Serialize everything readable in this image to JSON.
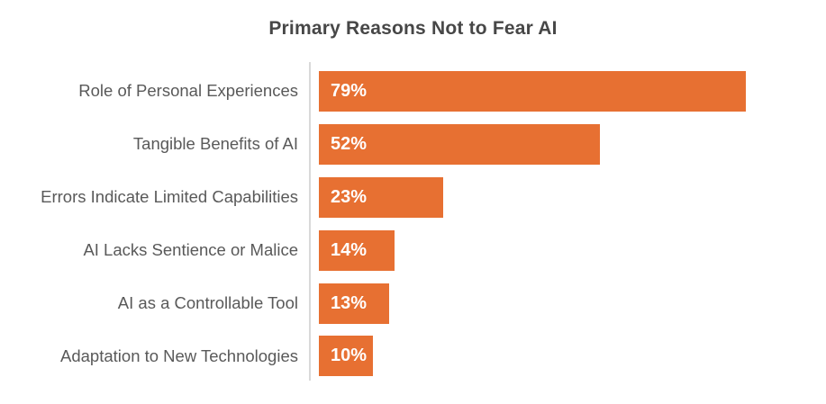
{
  "title": "Primary Reasons Not to Fear AI",
  "colors": {
    "bar": "#E77032",
    "label_text": "#595959",
    "title_text": "#474747",
    "value_text": "#FFFFFF",
    "axis_line": "#D9D9D9",
    "background": "#FFFFFF"
  },
  "chart_data": {
    "type": "bar",
    "orientation": "horizontal",
    "title": "Primary Reasons Not to Fear AI",
    "categories": [
      "Role of Personal Experiences",
      "Tangible Benefits of AI",
      "Errors Indicate Limited Capabilities",
      "AI Lacks Sentience or Malice",
      "AI as a Controllable Tool",
      "Adaptation to New Technologies"
    ],
    "values": [
      79,
      52,
      23,
      14,
      13,
      10
    ],
    "value_labels": [
      "79%",
      "52%",
      "23%",
      "14%",
      "13%",
      "10%"
    ],
    "xlabel": "",
    "ylabel": "",
    "sort_order": "descending",
    "grid": "off",
    "legend": "none",
    "data_labels_position": "inside-left",
    "bar_color": "#E77032"
  }
}
